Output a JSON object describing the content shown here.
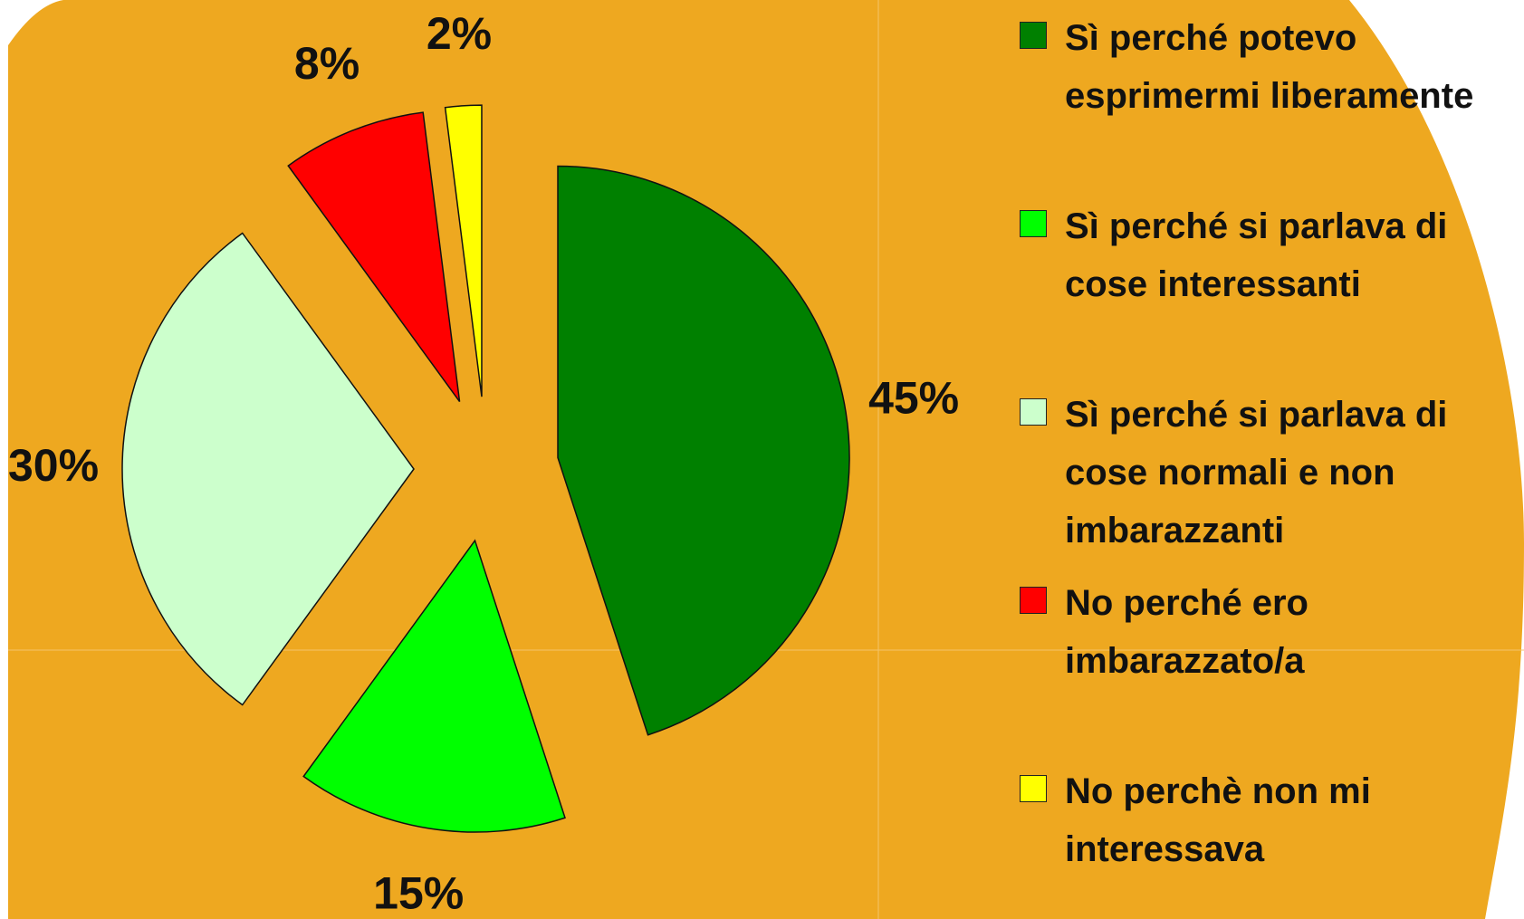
{
  "chart_data": {
    "type": "pie",
    "categories": [
      "Sì perché potevo esprimermi liberamente",
      "Sì perché si parlava di cose interessanti",
      "Sì perché si parlava di cose normali e non imbarazzanti",
      "No perché ero imbarazzato/a",
      "No perchè non mi interessava"
    ],
    "values": [
      45,
      15,
      30,
      8,
      2
    ],
    "value_labels": [
      "45%",
      "15%",
      "30%",
      "8%",
      "2%"
    ],
    "colors": [
      "#008000",
      "#00ff00",
      "#ccffcc",
      "#ff0000",
      "#ffff00"
    ],
    "legend": "right"
  }
}
